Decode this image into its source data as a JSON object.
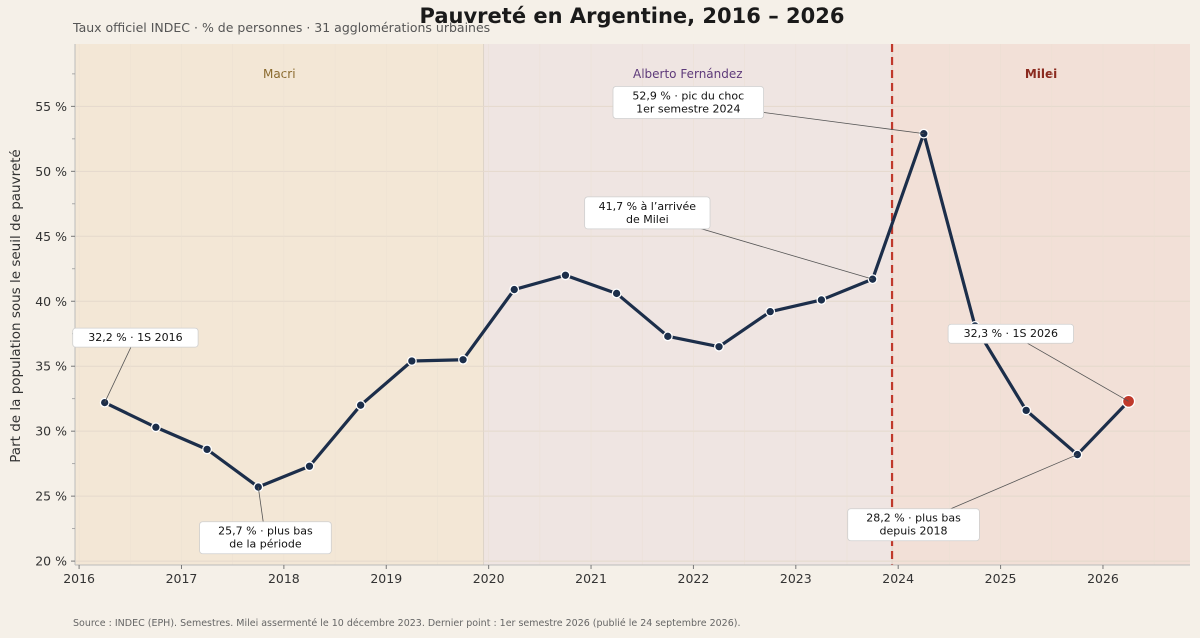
{
  "chart_data": {
    "type": "line",
    "title": "Pauvreté en Argentine, 2016 – 2026",
    "subtitle": "Taux officiel INDEC  ·  % de personnes  ·  31 agglomérations urbaines",
    "ylabel": "Part de la population sous le seuil de pauvreté",
    "xlabel": "",
    "ylim": [
      19.7,
      59.8
    ],
    "xlim": [
      2015.96,
      2026.85
    ],
    "yticks": [
      20,
      25,
      30,
      35,
      40,
      45,
      50,
      55
    ],
    "ytick_labels": [
      "20 %",
      "25 %",
      "30 %",
      "35 %",
      "40 %",
      "45 %",
      "50 %",
      "55 %"
    ],
    "xticks": [
      2016,
      2017,
      2018,
      2019,
      2020,
      2021,
      2022,
      2023,
      2024,
      2025,
      2026
    ],
    "xtick_labels": [
      "2016",
      "2017",
      "2018",
      "2019",
      "2020",
      "2021",
      "2022",
      "2023",
      "2024",
      "2025",
      "2026"
    ],
    "grid": true,
    "line_color": "#1c2e4a",
    "highlight_color": "#c0392b",
    "series": [
      {
        "x": [
          2016.25,
          2016.75,
          2017.25,
          2017.75,
          2018.25,
          2018.75,
          2019.25,
          2019.75,
          2020.25,
          2020.75,
          2021.25,
          2021.75,
          2022.25,
          2022.75,
          2023.25,
          2023.75,
          2024.25,
          2024.75,
          2025.25,
          2025.75,
          2026.25
        ],
        "values": [
          32.2,
          30.3,
          28.6,
          25.7,
          27.3,
          32.0,
          35.4,
          35.5,
          40.9,
          42.0,
          40.6,
          37.3,
          36.5,
          39.2,
          40.1,
          41.7,
          52.9,
          38.1,
          31.6,
          28.2,
          32.3
        ]
      }
    ],
    "eras": [
      {
        "name": "Macri",
        "start": 2015.96,
        "end": 2019.95,
        "fill": "#f3e7d6",
        "label_color": "#8a6a2e",
        "bold": false
      },
      {
        "name": "Alberto Fernández",
        "start": 2019.95,
        "end": 2023.94,
        "fill": "#efe5e2",
        "label_color": "#5e3a7a",
        "bold": false
      },
      {
        "name": "Milei",
        "start": 2023.94,
        "end": 2026.85,
        "fill": "#f2e0d7",
        "label_color": "#8b2a1f",
        "bold": true
      }
    ],
    "milei_line_x": 2023.94,
    "annotations": [
      {
        "lines": [
          "32,2 %  ·  1S 2016"
        ],
        "point_index": 0,
        "text_x": 2016.55,
        "text_y": 37.2
      },
      {
        "lines": [
          "25,7 %  ·  plus bas",
          "de la période"
        ],
        "point_index": 3,
        "text_x": 2017.82,
        "text_y": 21.8
      },
      {
        "lines": [
          "52,9 %  ·  pic du choc",
          "1er semestre 2024"
        ],
        "point_index": 16,
        "text_x": 2021.95,
        "text_y": 55.3
      },
      {
        "lines": [
          "41,7 % à l’arrivée",
          "de Milei"
        ],
        "point_index": 15,
        "text_x": 2021.55,
        "text_y": 46.8
      },
      {
        "lines": [
          "32,3 %  ·  1S 2026"
        ],
        "point_index": 20,
        "text_x": 2025.1,
        "text_y": 37.5
      },
      {
        "lines": [
          "28,2 %  ·  plus bas",
          "depuis 2018"
        ],
        "point_index": 19,
        "text_x": 2024.15,
        "text_y": 22.8
      }
    ],
    "source": "Source : INDEC (EPH). Semestres. Milei assermenté le 10 décembre 2023. Dernier point : 1er semestre 2026 (publié le 24 septembre 2026)."
  }
}
